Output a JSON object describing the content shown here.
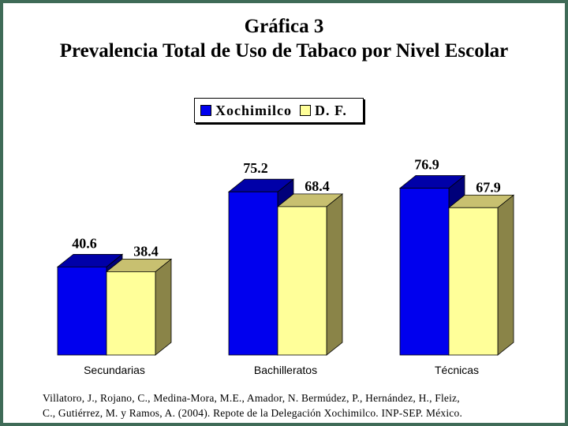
{
  "page": {
    "title_line1": "Gráfica 3",
    "title_line2": "Prevalencia Total de Uso de Tabaco por Nivel Escolar",
    "citation_line1": "Villatoro, J., Rojano, C., Medina-Mora, M.E., Amador, N. Bermúdez, P., Hernández, H., Fleiz,",
    "citation_line2": "C., Gutiérrez, M. y Ramos, A. (2004). Repote de la Delegación Xochimilco. INP-SEP. México."
  },
  "colors": {
    "xochimilco": "#0000ee",
    "df": "#ffff99",
    "frame": "#3f6b57"
  },
  "chart_data": {
    "type": "bar",
    "categories": [
      "Secundarias",
      "Bachilleratos",
      "Técnicas"
    ],
    "series": [
      {
        "name": "Xochimilco",
        "values": [
          40.6,
          75.2,
          76.9
        ]
      },
      {
        "name": "D. F.",
        "values": [
          38.4,
          68.4,
          67.9
        ]
      }
    ],
    "legend_position": "top-center",
    "grid": false,
    "three_d": true
  }
}
